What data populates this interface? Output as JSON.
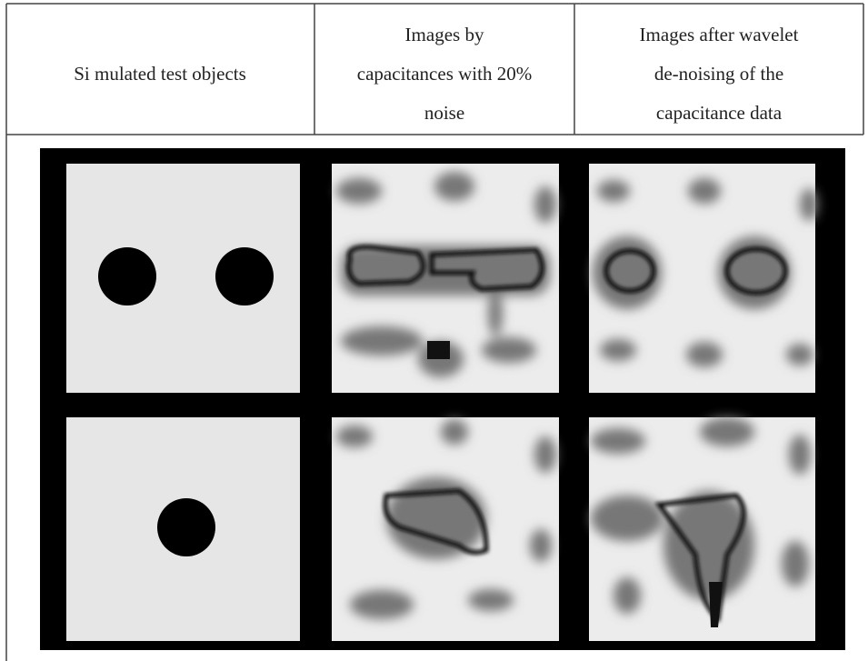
{
  "table": {
    "header": [
      [
        "Si mulated test objects"
      ],
      [
        "Images by",
        "capacitances with 20%",
        "noise"
      ],
      [
        "Images after wavelet",
        "de-noising of the",
        "capacitance data"
      ]
    ]
  }
}
